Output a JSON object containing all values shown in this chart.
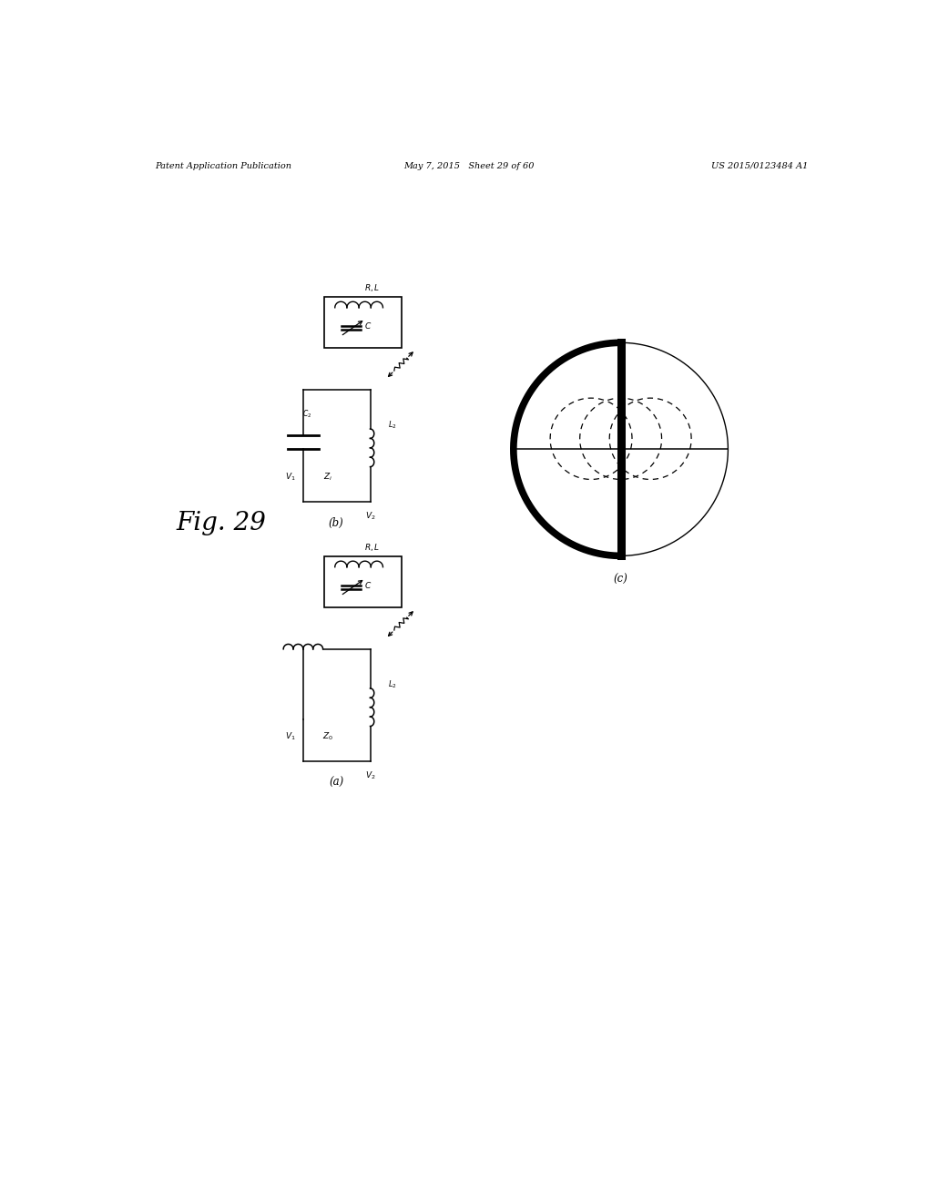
{
  "bg_color": "#ffffff",
  "header_left": "Patent Application Publication",
  "header_center": "May 7, 2015   Sheet 29 of 60",
  "header_right": "US 2015/0123484 A1",
  "fig_label": "Fig. 29",
  "sub_a_label": "(a)",
  "sub_b_label": "(b)",
  "sub_c_label": "(c)"
}
